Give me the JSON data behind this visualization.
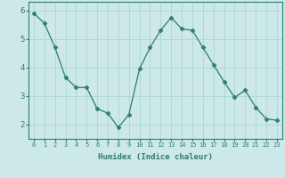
{
  "x": [
    0,
    1,
    2,
    3,
    4,
    5,
    6,
    7,
    8,
    9,
    10,
    11,
    12,
    13,
    14,
    15,
    16,
    17,
    18,
    19,
    20,
    21,
    22,
    23
  ],
  "y": [
    5.9,
    5.55,
    4.7,
    3.65,
    3.3,
    3.3,
    2.55,
    2.4,
    1.9,
    2.35,
    3.95,
    4.7,
    5.3,
    5.75,
    5.35,
    5.3,
    4.7,
    4.1,
    3.5,
    2.95,
    3.2,
    2.6,
    2.2,
    2.15
  ],
  "line_color": "#2e7d6e",
  "marker": "D",
  "marker_size": 2.5,
  "bg_color": "#cce8e8",
  "grid_color": "#aacccc",
  "xlabel": "Humidex (Indice chaleur)",
  "ylim": [
    1.5,
    6.3
  ],
  "xlim": [
    -0.5,
    23.5
  ],
  "yticks": [
    2,
    3,
    4,
    5,
    6
  ],
  "xticks": [
    0,
    1,
    2,
    3,
    4,
    5,
    6,
    7,
    8,
    9,
    10,
    11,
    12,
    13,
    14,
    15,
    16,
    17,
    18,
    19,
    20,
    21,
    22,
    23
  ],
  "tick_color": "#2e7d6e",
  "label_color": "#2e7d6e",
  "spine_color": "#2e7d6e",
  "grid_line_color": "#b0d8d8"
}
